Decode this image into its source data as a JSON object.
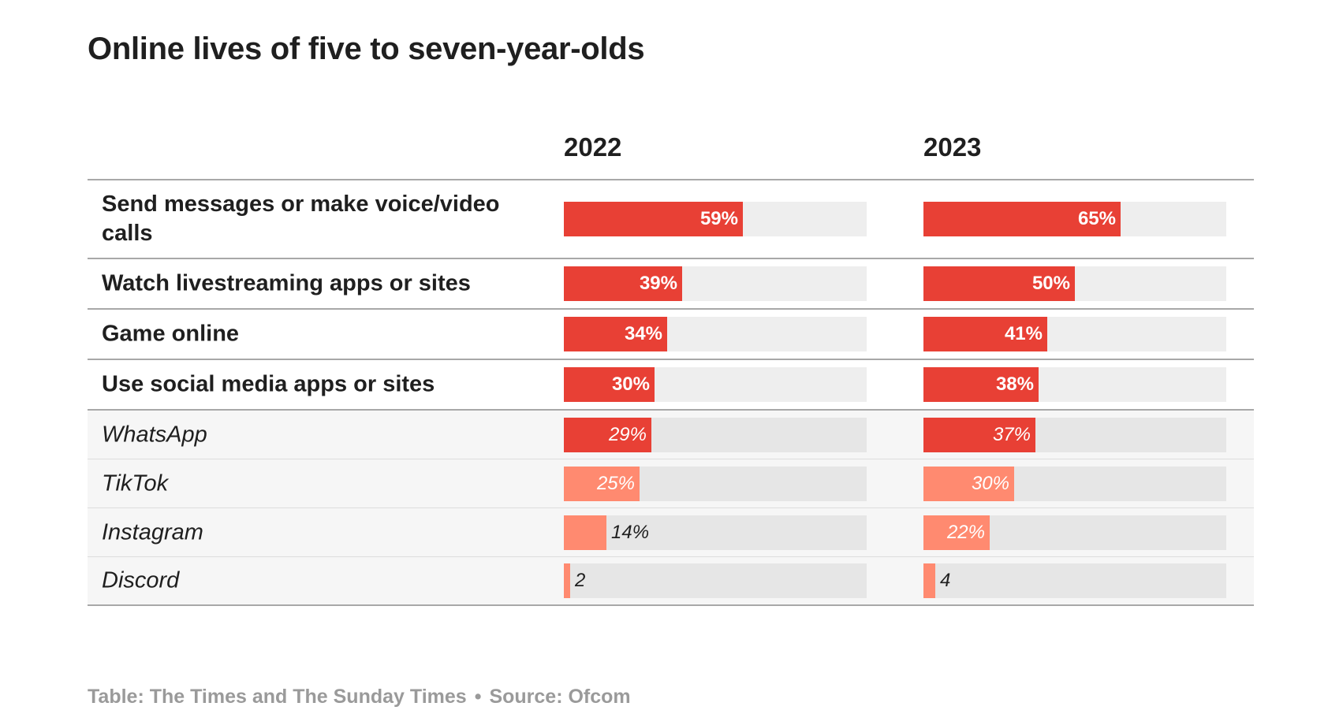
{
  "title": "Online lives of five to seven-year-olds",
  "footer": {
    "credit": "Table: The Times and The Sunday Times",
    "separator": "•",
    "source": "Source: Ofcom"
  },
  "colors": {
    "strong": "#e84035",
    "light": "#ff8a70",
    "track": "#eeeeee"
  },
  "chart_data": {
    "type": "bar",
    "columns": [
      "2022",
      "2023"
    ],
    "value_range": [
      0,
      100
    ],
    "rows": [
      {
        "label": "Send messages or make voice/video calls",
        "kind": "main",
        "values": [
          59,
          65
        ],
        "display": [
          "59%",
          "65%"
        ],
        "shade": [
          "strong",
          "strong"
        ]
      },
      {
        "label": "Watch livestreaming apps or sites",
        "kind": "main",
        "values": [
          39,
          50
        ],
        "display": [
          "39%",
          "50%"
        ],
        "shade": [
          "strong",
          "strong"
        ]
      },
      {
        "label": "Game online",
        "kind": "main",
        "values": [
          34,
          41
        ],
        "display": [
          "34%",
          "41%"
        ],
        "shade": [
          "strong",
          "strong"
        ]
      },
      {
        "label": "Use social media apps or sites",
        "kind": "main",
        "values": [
          30,
          38
        ],
        "display": [
          "30%",
          "38%"
        ],
        "shade": [
          "strong",
          "strong"
        ]
      },
      {
        "label": "WhatsApp",
        "kind": "sub",
        "values": [
          29,
          37
        ],
        "display": [
          "29%",
          "37%"
        ],
        "shade": [
          "strong",
          "strong"
        ]
      },
      {
        "label": "TikTok",
        "kind": "sub",
        "values": [
          25,
          30
        ],
        "display": [
          "25%",
          "30%"
        ],
        "shade": [
          "light",
          "light"
        ]
      },
      {
        "label": "Instagram",
        "kind": "sub",
        "values": [
          14,
          22
        ],
        "display": [
          "14%",
          "22%"
        ],
        "shade": [
          "light",
          "light"
        ]
      },
      {
        "label": "Discord",
        "kind": "sub",
        "values": [
          2,
          4
        ],
        "display": [
          "2",
          "4"
        ],
        "shade": [
          "light",
          "light"
        ]
      }
    ]
  }
}
